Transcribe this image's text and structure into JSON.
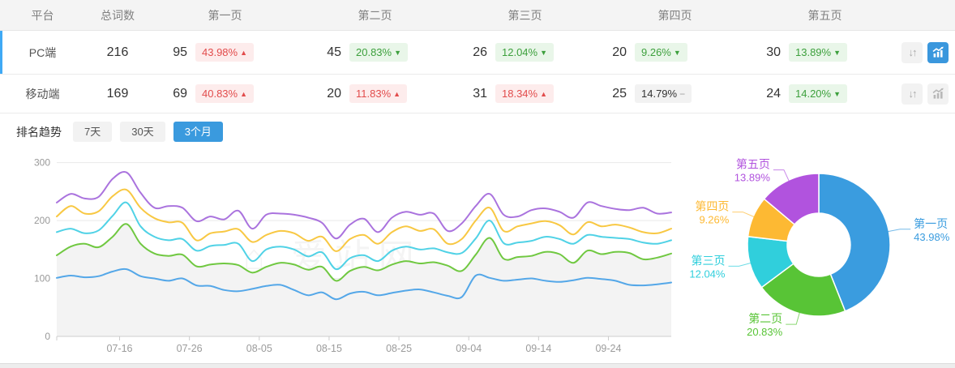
{
  "table": {
    "headers": [
      "平台",
      "总词数",
      "第一页",
      "第二页",
      "第三页",
      "第四页",
      "第五页"
    ],
    "rows": [
      {
        "platform": "PC端",
        "total": "216",
        "selected": true,
        "pages": [
          {
            "count": "95",
            "pct": "43.98%",
            "dir": "up"
          },
          {
            "count": "45",
            "pct": "20.83%",
            "dir": "down"
          },
          {
            "count": "26",
            "pct": "12.04%",
            "dir": "down"
          },
          {
            "count": "20",
            "pct": "9.26%",
            "dir": "down"
          },
          {
            "count": "30",
            "pct": "13.89%",
            "dir": "down"
          }
        ],
        "chart_button_active": true
      },
      {
        "platform": "移动端",
        "total": "169",
        "selected": false,
        "pages": [
          {
            "count": "69",
            "pct": "40.83%",
            "dir": "up"
          },
          {
            "count": "20",
            "pct": "11.83%",
            "dir": "up"
          },
          {
            "count": "31",
            "pct": "18.34%",
            "dir": "up"
          },
          {
            "count": "25",
            "pct": "14.79%",
            "dir": "flat"
          },
          {
            "count": "24",
            "pct": "14.20%",
            "dir": "down"
          }
        ],
        "chart_button_active": false
      }
    ]
  },
  "trend": {
    "title": "排名趋势",
    "tabs": [
      {
        "label": "7天",
        "active": false
      },
      {
        "label": "30天",
        "active": false
      },
      {
        "label": "3个月",
        "active": true
      }
    ]
  },
  "watermark": "⌂ 爱站网",
  "colors": {
    "accent_blue": "#3a9ade",
    "row_selected_bar": "#3fa9f5",
    "badge_up_text": "#e24c4c",
    "badge_down_text": "#3da03d"
  },
  "chart_data": [
    {
      "type": "line",
      "title": "排名趋势 3个月",
      "x": [
        "07-07",
        "07-09",
        "07-11",
        "07-13",
        "07-15",
        "07-17",
        "07-19",
        "07-21",
        "07-23",
        "07-25",
        "07-27",
        "07-29",
        "07-31",
        "08-02",
        "08-04",
        "08-06",
        "08-08",
        "08-10",
        "08-12",
        "08-14",
        "08-16",
        "08-18",
        "08-20",
        "08-22",
        "08-24",
        "08-26",
        "08-28",
        "08-30",
        "09-01",
        "09-03",
        "09-05",
        "09-07",
        "09-09",
        "09-11",
        "09-13",
        "09-15",
        "09-17",
        "09-19",
        "09-21",
        "09-23",
        "09-25",
        "09-27",
        "09-29",
        "10-01",
        "10-03"
      ],
      "xticks": [
        "07-16",
        "07-26",
        "08-05",
        "08-15",
        "08-25",
        "09-04",
        "09-14",
        "09-24"
      ],
      "yticks": [
        0,
        100,
        200,
        300
      ],
      "ylim": [
        0,
        300
      ],
      "grid": true,
      "legend": "none",
      "series": [
        {
          "name": "第一页",
          "color": "#54a7e8",
          "values": [
            101,
            105,
            102,
            104,
            112,
            116,
            104,
            100,
            96,
            100,
            88,
            87,
            80,
            78,
            82,
            87,
            89,
            80,
            71,
            76,
            64,
            74,
            77,
            71,
            75,
            79,
            81,
            76,
            70,
            68,
            105,
            101,
            96,
            98,
            100,
            96,
            94,
            97,
            101,
            99,
            96,
            89,
            88,
            90,
            93
          ]
        },
        {
          "name": "第二页",
          "color": "#70c841",
          "area": "#f3f3f3",
          "values": [
            140,
            155,
            160,
            154,
            172,
            194,
            160,
            143,
            139,
            141,
            121,
            124,
            126,
            123,
            110,
            120,
            127,
            124,
            115,
            120,
            96,
            113,
            120,
            114,
            124,
            130,
            126,
            128,
            122,
            113,
            141,
            170,
            134,
            137,
            139,
            146,
            142,
            127,
            148,
            142,
            146,
            144,
            133,
            136,
            143
          ]
        },
        {
          "name": "第三页",
          "color": "#50d2e6",
          "values": [
            180,
            186,
            178,
            183,
            208,
            231,
            190,
            172,
            166,
            168,
            148,
            156,
            158,
            160,
            130,
            150,
            155,
            150,
            138,
            145,
            116,
            135,
            140,
            130,
            148,
            155,
            150,
            152,
            145,
            144,
            169,
            200,
            161,
            162,
            165,
            172,
            168,
            160,
            175,
            172,
            170,
            168,
            162,
            160,
            166
          ]
        },
        {
          "name": "第四页",
          "color": "#f8c843",
          "values": [
            207,
            225,
            212,
            216,
            242,
            253,
            222,
            204,
            197,
            196,
            166,
            178,
            181,
            185,
            163,
            175,
            182,
            178,
            165,
            172,
            147,
            168,
            175,
            160,
            180,
            190,
            182,
            185,
            160,
            168,
            200,
            222,
            182,
            190,
            195,
            199,
            192,
            176,
            197,
            190,
            193,
            188,
            180,
            178,
            186
          ]
        },
        {
          "name": "第五页",
          "color": "#aa73de",
          "values": [
            231,
            246,
            238,
            241,
            272,
            283,
            248,
            222,
            225,
            222,
            199,
            207,
            202,
            217,
            186,
            210,
            212,
            210,
            205,
            196,
            169,
            193,
            203,
            180,
            205,
            215,
            210,
            212,
            182,
            195,
            225,
            246,
            210,
            207,
            218,
            221,
            215,
            205,
            231,
            225,
            220,
            218,
            222,
            212,
            214
          ]
        }
      ]
    },
    {
      "type": "pie",
      "donut": true,
      "segments": [
        {
          "label": "第一页",
          "value": 43.98,
          "color": "#3a9cdf"
        },
        {
          "label": "第二页",
          "value": 20.83,
          "color": "#58c436"
        },
        {
          "label": "第三页",
          "value": 12.04,
          "color": "#30cfdc"
        },
        {
          "label": "第四页",
          "value": 9.26,
          "color": "#fdb933"
        },
        {
          "label": "第五页",
          "value": 13.89,
          "color": "#b153de"
        }
      ]
    }
  ]
}
